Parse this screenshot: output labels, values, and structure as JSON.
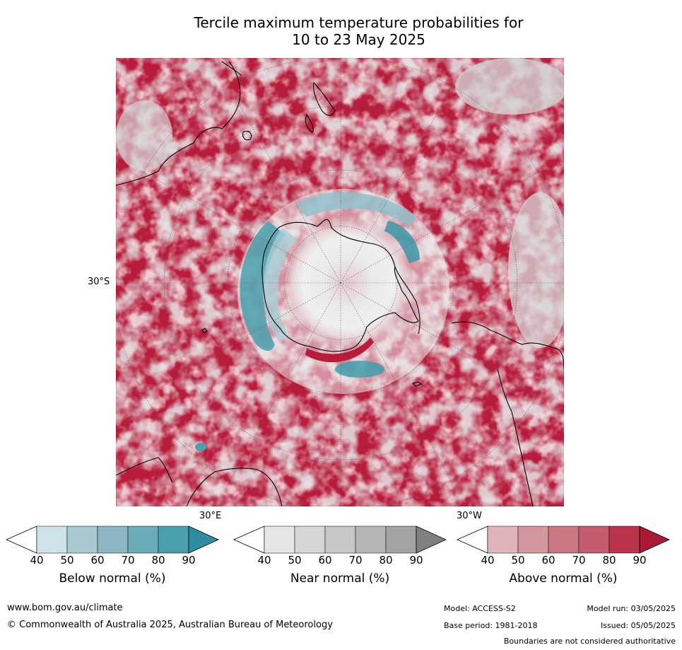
{
  "title_line1": "Tercile maximum temperature probabilities for",
  "title_line2": "10 to 23 May 2025",
  "map": {
    "projection": "south-polar-stereographic",
    "lat_label": "30°S",
    "lon_labels": [
      "30°E",
      "30°W"
    ],
    "colors": {
      "above_dominant": "#b71c3a",
      "above_mid": "#c8566a",
      "above_light": "#dca0aa",
      "near": "#c8c8c8",
      "below": "#3f9eae",
      "below_light": "#a8cdd5",
      "land_outline": "#000000"
    }
  },
  "colorbars": [
    {
      "name": "Below normal (%)",
      "ticks": [
        "40",
        "50",
        "60",
        "70",
        "80",
        "90"
      ],
      "colors": [
        "#ffffff",
        "#cde3e9",
        "#a8c8cf",
        "#8db6c3",
        "#6aacb8",
        "#4a9fae",
        "#2e8e9f"
      ]
    },
    {
      "name": "Near normal (%)",
      "ticks": [
        "40",
        "50",
        "60",
        "70",
        "80",
        "90"
      ],
      "colors": [
        "#ffffff",
        "#e6e6e6",
        "#d6d6d6",
        "#c7c7c7",
        "#b6b6b6",
        "#a3a3a3",
        "#808080"
      ]
    },
    {
      "name": "Above normal (%)",
      "ticks": [
        "40",
        "50",
        "60",
        "70",
        "80",
        "90"
      ],
      "colors": [
        "#ffffff",
        "#dfb5bb",
        "#d5979e",
        "#cb7683",
        "#c45c6d",
        "#b9334b",
        "#aa1a36"
      ]
    }
  ],
  "footer": {
    "url": "www.bom.gov.au/climate",
    "copyright": "© Commonwealth of Australia 2025, Australian Bureau of Meteorology",
    "model": "Model: ACCESS-S2",
    "base_period": "Base period: 1981-2018",
    "model_run": "Model run: 03/05/2025",
    "issued": "Issued: 05/05/2025",
    "disclaimer": "Boundaries are not considered authoritative"
  }
}
